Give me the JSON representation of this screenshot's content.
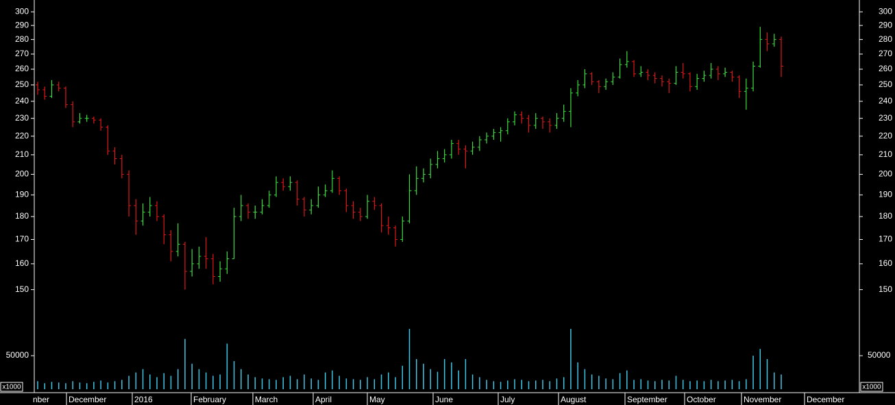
{
  "chart_data": {
    "type": "ohlc",
    "x_labels": [
      "nber",
      "December",
      "2016",
      "February",
      "March",
      "April",
      "May",
      "June",
      "July",
      "August",
      "September",
      "October",
      "November",
      "December"
    ],
    "open": [
      250,
      247,
      243,
      250,
      248,
      238,
      228,
      230,
      230,
      229,
      225,
      212,
      208,
      200,
      185,
      178,
      182,
      185,
      180,
      172,
      165,
      168,
      157,
      160,
      163,
      162,
      155,
      158,
      162,
      180,
      185,
      182,
      182,
      185,
      190,
      196,
      194,
      196,
      188,
      183,
      185,
      190,
      192,
      198,
      192,
      185,
      182,
      180,
      187,
      185,
      176,
      175,
      170,
      178,
      192,
      198,
      200,
      205,
      208,
      210,
      216,
      213,
      212,
      214,
      218,
      220,
      222,
      223,
      228,
      232,
      230,
      226,
      230,
      228,
      226,
      230,
      234,
      245,
      250,
      257,
      252,
      249,
      252,
      255,
      263,
      265,
      257,
      258,
      256,
      254,
      252,
      251,
      258,
      257,
      249,
      254,
      256,
      260,
      257,
      258,
      255,
      246,
      248,
      262,
      280,
      277,
      280
    ],
    "high": [
      252,
      249,
      253,
      252,
      249,
      240,
      233,
      232,
      231,
      230,
      226,
      214,
      210,
      202,
      188,
      186,
      189,
      187,
      181,
      174,
      177,
      169,
      166,
      167,
      171,
      164,
      161,
      165,
      184,
      190,
      186,
      185,
      188,
      192,
      199,
      198,
      199,
      197,
      189,
      188,
      194,
      195,
      202,
      199,
      193,
      187,
      184,
      190,
      189,
      186,
      180,
      176,
      180,
      200,
      204,
      203,
      208,
      212,
      213,
      218,
      218,
      215,
      217,
      220,
      222,
      224,
      225,
      230,
      234,
      234,
      232,
      233,
      231,
      230,
      233,
      238,
      248,
      253,
      260,
      258,
      253,
      254,
      258,
      267,
      272,
      266,
      262,
      260,
      258,
      256,
      254,
      262,
      264,
      258,
      257,
      259,
      264,
      262,
      261,
      259,
      256,
      254,
      265,
      289,
      285,
      284,
      282
    ],
    "low": [
      244,
      241,
      242,
      246,
      236,
      225,
      227,
      228,
      227,
      223,
      210,
      205,
      198,
      180,
      172,
      176,
      180,
      178,
      168,
      161,
      163,
      150,
      155,
      158,
      158,
      152,
      153,
      156,
      162,
      178,
      179,
      179,
      181,
      184,
      189,
      192,
      192,
      185,
      180,
      181,
      184,
      189,
      191,
      190,
      182,
      179,
      178,
      179,
      183,
      173,
      172,
      167,
      169,
      177,
      190,
      196,
      198,
      203,
      206,
      208,
      210,
      203,
      210,
      212,
      216,
      218,
      217,
      221,
      226,
      227,
      222,
      224,
      224,
      222,
      224,
      228,
      225,
      243,
      248,
      250,
      245,
      247,
      250,
      254,
      261,
      255,
      255,
      253,
      251,
      249,
      245,
      250,
      254,
      246,
      247,
      252,
      254,
      253,
      255,
      252,
      242,
      235,
      246,
      261,
      272,
      275,
      255
    ],
    "close": [
      247,
      243,
      250,
      248,
      238,
      228,
      230,
      230,
      229,
      225,
      212,
      208,
      200,
      185,
      178,
      182,
      185,
      180,
      172,
      165,
      168,
      157,
      160,
      163,
      162,
      155,
      158,
      162,
      180,
      185,
      182,
      182,
      185,
      190,
      196,
      194,
      196,
      188,
      183,
      185,
      190,
      192,
      198,
      192,
      185,
      182,
      180,
      187,
      185,
      176,
      175,
      170,
      178,
      192,
      198,
      200,
      205,
      208,
      210,
      216,
      213,
      212,
      214,
      218,
      220,
      222,
      223,
      228,
      232,
      230,
      226,
      230,
      228,
      226,
      230,
      234,
      245,
      250,
      257,
      252,
      249,
      252,
      255,
      263,
      265,
      257,
      258,
      256,
      254,
      252,
      251,
      258,
      257,
      249,
      254,
      256,
      260,
      257,
      258,
      255,
      246,
      248,
      262,
      280,
      277,
      280,
      262
    ],
    "volume": [
      12000,
      9000,
      11000,
      10000,
      9000,
      12000,
      10000,
      9000,
      11000,
      13000,
      10000,
      12000,
      14000,
      20000,
      25000,
      30000,
      22000,
      18000,
      24000,
      20000,
      30000,
      75000,
      38000,
      30000,
      25000,
      20000,
      22000,
      68000,
      42000,
      30000,
      22000,
      18000,
      16000,
      15000,
      14000,
      18000,
      20000,
      15000,
      22000,
      16000,
      14000,
      25000,
      28000,
      20000,
      16000,
      15000,
      14000,
      18000,
      15000,
      22000,
      25000,
      18000,
      35000,
      90000,
      45000,
      38000,
      30000,
      26000,
      45000,
      40000,
      28000,
      45000,
      22000,
      18000,
      14000,
      12000,
      11000,
      13000,
      15000,
      14000,
      12000,
      13000,
      14000,
      12000,
      16000,
      18000,
      90000,
      40000,
      30000,
      22000,
      20000,
      16000,
      15000,
      24000,
      28000,
      14000,
      15000,
      13000,
      12000,
      14000,
      13000,
      20000,
      14000,
      12000,
      13000,
      12000,
      14000,
      12000,
      13000,
      14000,
      12000,
      15000,
      50000,
      60000,
      45000,
      25000,
      22000
    ],
    "up_color": "#3ee03e",
    "down_color": "#e01818",
    "volume_color": "#40c8e8",
    "log_scale": true,
    "ylim": [
      140,
      309
    ],
    "yticks": [
      150,
      160,
      170,
      180,
      190,
      200,
      210,
      220,
      230,
      240,
      250,
      260,
      270,
      280,
      290,
      300
    ],
    "volume_ylim": [
      0,
      95000
    ],
    "volume_yticks": [
      50000
    ],
    "volume_unit": "x1000"
  }
}
